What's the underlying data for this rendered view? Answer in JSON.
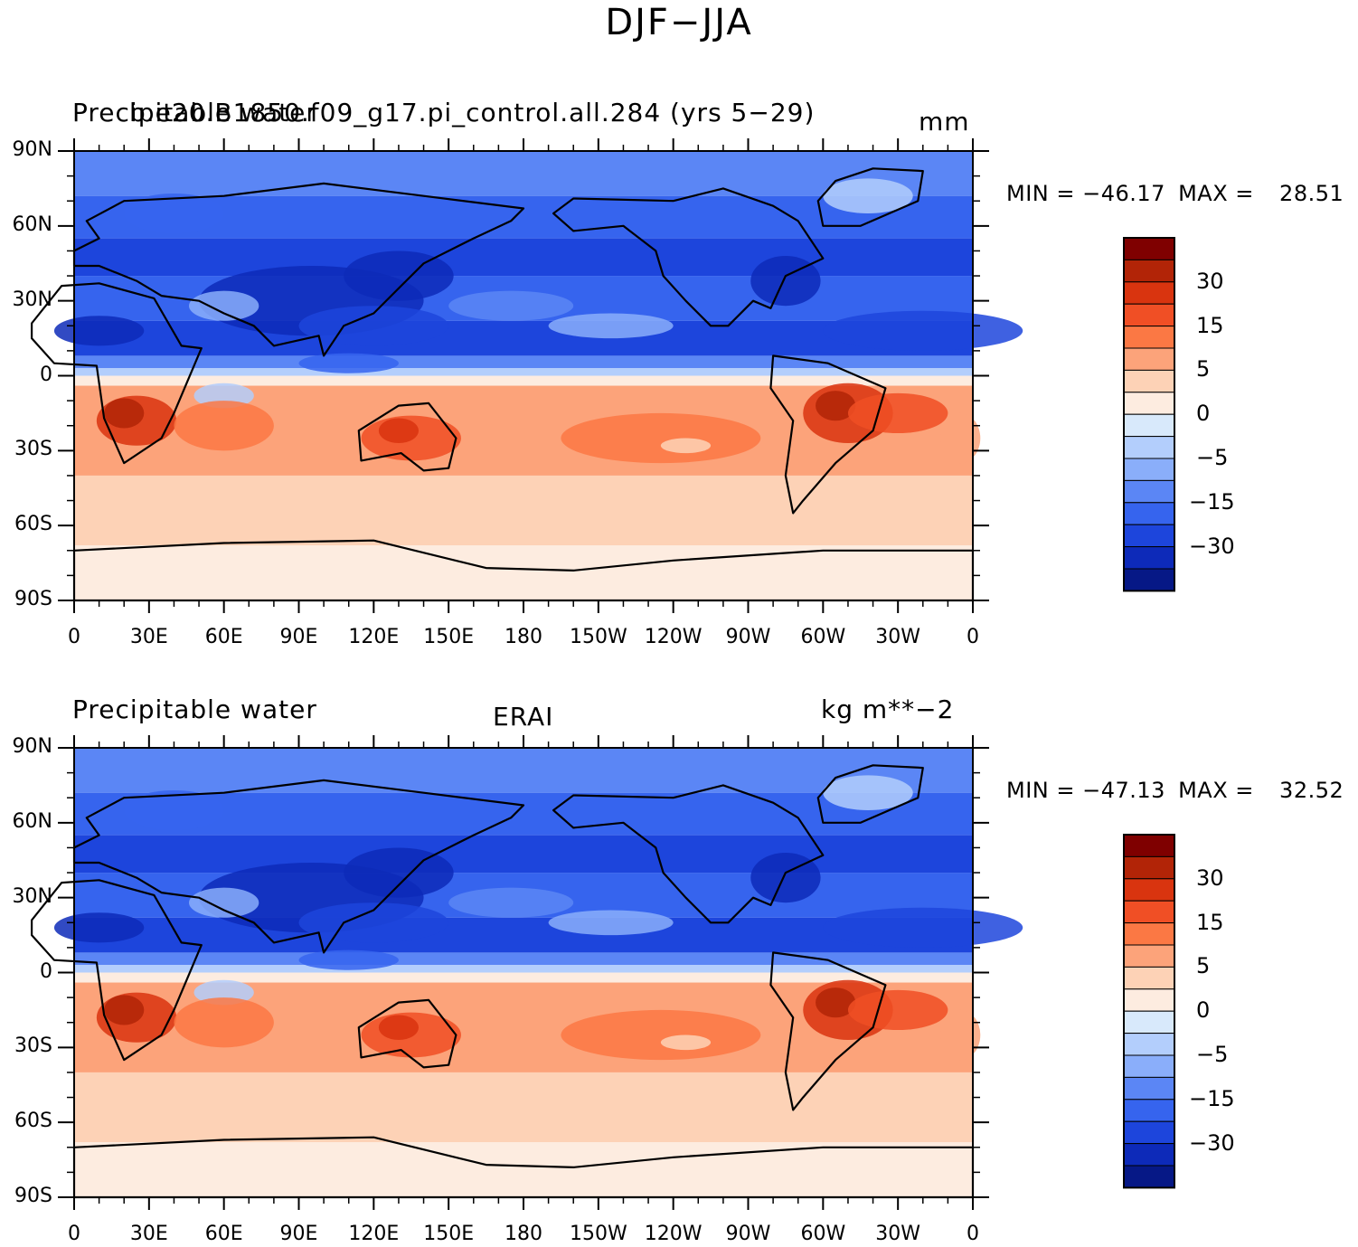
{
  "figure": {
    "title": "DJF−JJA"
  },
  "panels": [
    {
      "left_title": "Precipitable water",
      "center_title": "b.e20.B1850.f09_g17.pi_control.all.284 (yrs 5−29)",
      "right_title": "mm",
      "min_label": "MIN",
      "min_value": "−46.17",
      "max_label": "MAX",
      "max_value": "28.51"
    },
    {
      "left_title": "Precipitable water",
      "center_title": "ERAI",
      "right_title": "kg m**−2",
      "min_label": "MIN",
      "min_value": "−47.13",
      "max_label": "MAX",
      "max_value": "32.52"
    }
  ],
  "axes": {
    "lat_ticks": [
      "90N",
      "60N",
      "30N",
      "0",
      "30S",
      "60S",
      "90S"
    ],
    "lon_ticks": [
      "0",
      "30E",
      "60E",
      "90E",
      "120E",
      "150E",
      "180",
      "150W",
      "120W",
      "90W",
      "60W",
      "30W",
      "0"
    ]
  },
  "colorbar": {
    "labels": [
      "30",
      "15",
      "5",
      "0",
      "−5",
      "−15",
      "−30"
    ],
    "colors": [
      "#7f0000",
      "#b22407",
      "#d9340f",
      "#f04f25",
      "#fb7844",
      "#fca37a",
      "#fdd2b6",
      "#fdece0",
      "#d8e9fb",
      "#b3cefc",
      "#8aaefa",
      "#5b86f5",
      "#3664ee",
      "#1d45dc",
      "#0d2ab9",
      "#061886"
    ]
  }
}
